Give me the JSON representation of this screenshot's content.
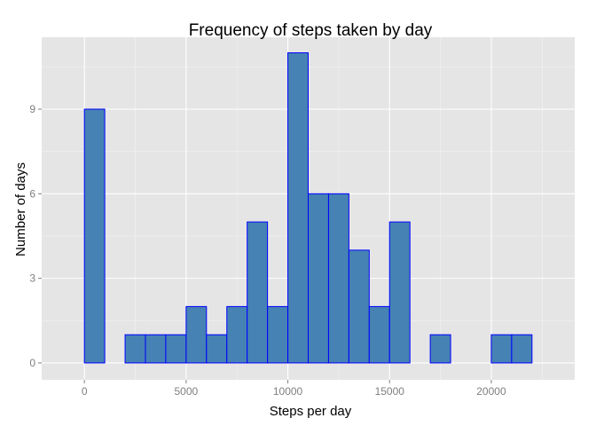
{
  "chart_data": {
    "type": "bar",
    "title": "Frequency of steps taken by day",
    "xlabel": "Steps per day",
    "ylabel": "Number of days",
    "binwidth": 1000,
    "bin_starts": [
      -1000,
      0,
      1000,
      2000,
      3000,
      4000,
      5000,
      6000,
      7000,
      8000,
      9000,
      10000,
      11000,
      12000,
      13000,
      14000,
      15000,
      16000,
      17000,
      18000,
      19000,
      20000,
      21000,
      22000
    ],
    "values": [
      0,
      9,
      0,
      1,
      1,
      1,
      2,
      1,
      2,
      5,
      2,
      11,
      6,
      6,
      4,
      2,
      5,
      0,
      1,
      0,
      0,
      1,
      1,
      0
    ],
    "xlim": [
      -2100,
      24100
    ],
    "ylim": [
      -0.6,
      11.55
    ],
    "x_ticks": [
      0,
      5000,
      10000,
      15000,
      20000
    ],
    "x_tick_labels": [
      "0",
      "5000",
      "10000",
      "15000",
      "20000"
    ],
    "y_ticks": [
      0,
      3,
      6,
      9
    ],
    "y_tick_labels": [
      "0",
      "3",
      "6",
      "9"
    ],
    "grid": true,
    "colors": {
      "panel": "#e5e5e5",
      "grid_major": "#ffffff",
      "grid_minor": "#f2f2f2",
      "bar_fill": "#4682b4",
      "bar_outline": "#0000ff"
    }
  }
}
